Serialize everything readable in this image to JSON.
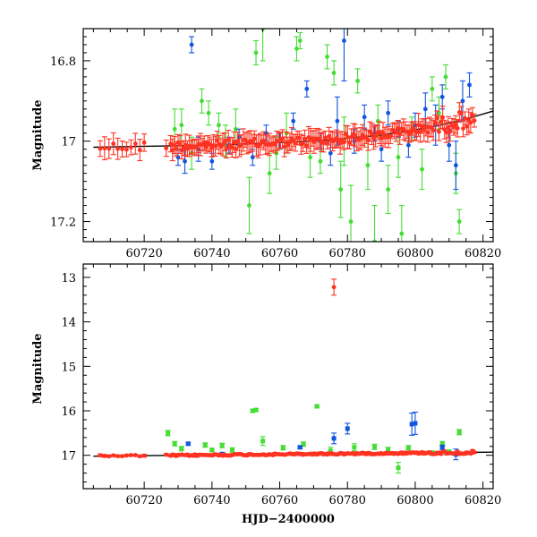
{
  "colors": {
    "green": "#44dd33",
    "blue": "#1155dd",
    "red": "#ff3322",
    "axis": "#000000"
  },
  "chart_data": [
    {
      "type": "scatter",
      "title": "",
      "xlabel": "",
      "ylabel": "Magnitude",
      "xlim": [
        60702,
        60823
      ],
      "ylim": [
        17.25,
        16.72
      ],
      "y_inverted": true,
      "xticks": [
        60720,
        60740,
        60760,
        60780,
        60800,
        60820
      ],
      "xtick_labels": [
        "60720",
        "60740",
        "60760",
        "60780",
        "60800",
        "60820"
      ],
      "yticks": [
        16.8,
        17,
        17.2
      ],
      "ytick_labels": [
        "16.8",
        "17",
        "17.2"
      ],
      "trend": {
        "x": [
          60705,
          60740,
          60770,
          60790,
          60805,
          60815,
          60823
        ],
        "y": [
          17.015,
          17.01,
          17.0,
          16.985,
          16.965,
          16.945,
          16.925
        ]
      },
      "series": [
        {
          "color_key": "green",
          "x": [
            60729,
            60731,
            60734,
            60737,
            60739,
            60742,
            60744,
            60747,
            60751,
            60753,
            60755,
            60757,
            60759,
            60762,
            60765,
            60766,
            60769,
            60772,
            60774,
            60776,
            60778,
            60779,
            60781,
            60783,
            60786,
            60788,
            60789,
            60792,
            60795,
            60796,
            60799,
            60802,
            60805,
            60807,
            60809,
            60812,
            60813
          ],
          "y": [
            16.97,
            16.96,
            17.03,
            16.9,
            16.93,
            16.96,
            17.0,
            16.97,
            17.16,
            16.78,
            16.72,
            17.08,
            17.03,
            16.98,
            16.77,
            16.75,
            17.04,
            17.05,
            16.79,
            16.83,
            17.12,
            17.0,
            17.2,
            16.85,
            17.06,
            17.25,
            16.95,
            17.12,
            17.04,
            17.23,
            16.97,
            17.07,
            16.87,
            16.93,
            16.84,
            17.08,
            17.2
          ],
          "err": [
            0.05,
            0.04,
            0.04,
            0.03,
            0.03,
            0.03,
            0.04,
            0.05,
            0.07,
            0.03,
            0.08,
            0.05,
            0.04,
            0.05,
            0.03,
            0.02,
            0.05,
            0.03,
            0.03,
            0.03,
            0.07,
            0.06,
            0.09,
            0.03,
            0.06,
            0.09,
            0.04,
            0.06,
            0.05,
            0.07,
            0.03,
            0.05,
            0.03,
            0.04,
            0.03,
            0.05,
            0.03
          ]
        },
        {
          "color_key": "blue",
          "x": [
            60730,
            60732,
            60734,
            60736,
            60740,
            60745,
            60748,
            60752,
            60756,
            60760,
            60764,
            60768,
            60772,
            60775,
            60777,
            60779,
            60782,
            60785,
            60788,
            60790,
            60792,
            60795,
            60798,
            60800,
            60803,
            60806,
            60808,
            60810,
            60812,
            60814,
            60816
          ],
          "y": [
            17.04,
            17.05,
            16.76,
            17.02,
            17.05,
            17.01,
            16.99,
            17.04,
            16.98,
            17.0,
            16.95,
            16.87,
            17.0,
            17.03,
            16.95,
            16.75,
            17.0,
            16.94,
            16.98,
            17.02,
            16.93,
            16.97,
            17.01,
            16.96,
            16.92,
            16.96,
            16.89,
            17.01,
            17.06,
            16.9,
            16.86
          ],
          "err": [
            0.02,
            0.03,
            0.02,
            0.03,
            0.02,
            0.02,
            0.02,
            0.02,
            0.02,
            0.02,
            0.02,
            0.02,
            0.02,
            0.03,
            0.06,
            0.1,
            0.03,
            0.03,
            0.02,
            0.03,
            0.03,
            0.02,
            0.03,
            0.03,
            0.04,
            0.05,
            0.03,
            0.04,
            0.06,
            0.05,
            0.03
          ]
        }
      ],
      "red_series": {
        "color_key": "red",
        "x_start": 60707,
        "x_end": 60818,
        "err": 0.022
      }
    },
    {
      "type": "scatter",
      "title": "",
      "xlabel": "HJD−2400000",
      "ylabel": "Magnitude",
      "xlim": [
        60702,
        60823
      ],
      "ylim": [
        17.75,
        12.7
      ],
      "y_inverted": true,
      "xticks": [
        60720,
        60740,
        60760,
        60780,
        60800,
        60820
      ],
      "xtick_labels": [
        "60720",
        "60740",
        "60760",
        "60780",
        "60800",
        "60820"
      ],
      "yticks": [
        13,
        14,
        15,
        16,
        17
      ],
      "ytick_labels": [
        "13",
        "14",
        "15",
        "16",
        "17"
      ],
      "trend": {
        "x": [
          60705,
          60823
        ],
        "y": [
          17.02,
          16.93
        ]
      },
      "series": [
        {
          "color_key": "green",
          "x": [
            60727,
            60729,
            60731,
            60738,
            60740,
            60743,
            60746,
            60752,
            60753,
            60755,
            60761,
            60767,
            60771,
            60775,
            60782,
            60788,
            60792,
            60795,
            60798,
            60805,
            60808,
            60810,
            60813
          ],
          "y": [
            16.5,
            16.74,
            16.85,
            16.77,
            16.88,
            16.78,
            16.88,
            16.0,
            15.98,
            16.68,
            16.83,
            16.75,
            15.9,
            16.9,
            16.82,
            16.81,
            16.87,
            17.28,
            16.83,
            16.95,
            16.74,
            16.93,
            16.48
          ],
          "err": [
            0.06,
            0.05,
            0.05,
            0.05,
            0.04,
            0.05,
            0.05,
            0.04,
            0.03,
            0.1,
            0.05,
            0.05,
            0.03,
            0.08,
            0.08,
            0.06,
            0.05,
            0.12,
            0.05,
            0.05,
            0.05,
            0.05,
            0.06
          ]
        },
        {
          "color_key": "blue",
          "x": [
            60733,
            60743,
            60766,
            60776,
            60780,
            60799,
            60800,
            60808,
            60812
          ],
          "y": [
            16.74,
            16.97,
            16.82,
            16.62,
            16.4,
            16.3,
            16.28,
            16.82,
            16.98
          ],
          "err": [
            0.03,
            0.03,
            0.03,
            0.12,
            0.12,
            0.25,
            0.25,
            0.05,
            0.12
          ]
        },
        {
          "color_key": "red",
          "x": [
            60776
          ],
          "y": [
            13.22
          ],
          "err": [
            0.18
          ]
        }
      ],
      "red_series": {
        "color_key": "red",
        "x_start": 60707,
        "x_end": 60818,
        "err": 0.025
      }
    }
  ]
}
